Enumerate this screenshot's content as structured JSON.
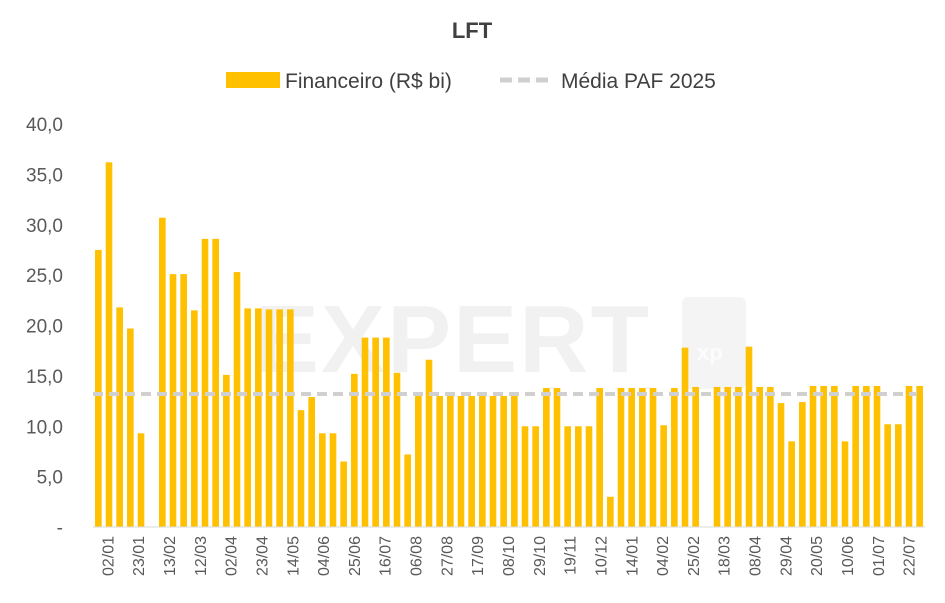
{
  "chart_data": {
    "type": "bar",
    "title": "LFT",
    "legend": [
      "Financeiro (R$ bi)",
      "Média PAF 2025"
    ],
    "legend_position": "top-center",
    "ylim": [
      0,
      40
    ],
    "y_ticks": [
      "-",
      "5,0",
      "10,0",
      "15,0",
      "20,0",
      "25,0",
      "30,0",
      "35,0",
      "40,0"
    ],
    "x_tick_labels": [
      "02/01",
      "23/01",
      "13/02",
      "12/03",
      "02/04",
      "23/04",
      "14/05",
      "04/06",
      "25/06",
      "16/07",
      "06/08",
      "27/08",
      "17/09",
      "08/10",
      "29/10",
      "19/11",
      "10/12",
      "14/01",
      "04/02",
      "25/02",
      "18/03",
      "08/04",
      "29/04",
      "20/05",
      "10/06",
      "01/07",
      "22/07"
    ],
    "series": [
      {
        "name": "Financeiro (R$ bi)",
        "color": "#FFC000",
        "values": [
          27.5,
          36.2,
          21.8,
          19.7,
          9.3,
          0,
          30.7,
          25.1,
          25.1,
          21.5,
          28.6,
          28.6,
          15.1,
          25.3,
          21.7,
          21.7,
          21.6,
          21.6,
          21.6,
          11.6,
          12.9,
          9.3,
          9.3,
          6.5,
          15.2,
          18.8,
          18.8,
          18.8,
          15.3,
          7.2,
          13.0,
          16.6,
          13.0,
          13.0,
          13.0,
          13.0,
          13.0,
          13.0,
          13.0,
          13.0,
          10.0,
          10.0,
          13.8,
          13.8,
          10.0,
          10.0,
          10.0,
          13.8,
          3.0,
          13.8,
          13.8,
          13.8,
          13.8,
          10.1,
          13.8,
          17.8,
          13.9,
          0,
          13.9,
          13.9,
          13.9,
          17.9,
          13.9,
          13.9,
          12.3,
          8.5,
          12.4,
          14.0,
          14.0,
          14.0,
          8.5,
          14.0,
          14.0,
          14.0,
          10.2,
          10.2,
          14.0,
          14.0
        ]
      },
      {
        "name": "Média PAF 2025",
        "color": "#d0d0d0",
        "style": "dashed",
        "value": 13.2
      }
    ]
  },
  "watermark": "EXPERT",
  "watermark_badge": "xp"
}
